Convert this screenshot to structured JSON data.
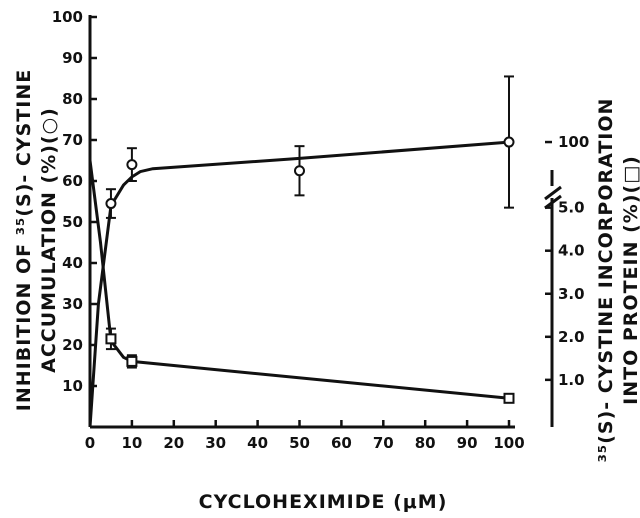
{
  "chart_data": {
    "type": "line",
    "xlabel": "CYCLOHEXIMIDE (μM)",
    "ylabel_left": [
      "INHIBITION OF ³⁵(S)- CYSTINE",
      "ACCUMULATION (%)(○)"
    ],
    "ylabel_right": [
      "³⁵(S)- CYSTINE INCORPORATION",
      "INTO PROTEIN (%)(□)"
    ],
    "xlim": [
      0,
      110
    ],
    "xticks": [
      "0",
      "10",
      "20",
      "30",
      "40",
      "50",
      "60",
      "70",
      "80",
      "90",
      "100"
    ],
    "ylim_left": [
      0,
      100
    ],
    "yticks_left": [
      "10",
      "20",
      "30",
      "40",
      "50",
      "60",
      "70",
      "80",
      "90",
      "100"
    ],
    "right_axis_break": true,
    "yticks_right": [
      {
        "label": "1.0",
        "value": 1.0,
        "left_equiv": 11.5
      },
      {
        "label": "2.0",
        "value": 2.0,
        "left_equiv": 22.0
      },
      {
        "label": "3.0",
        "value": 3.0,
        "left_equiv": 32.5
      },
      {
        "label": "4.0",
        "value": 4.0,
        "left_equiv": 43.0
      },
      {
        "label": "5.0",
        "value": 5.0,
        "left_equiv": 53.5
      },
      {
        "label": "100",
        "value": 100,
        "left_equiv": 69.5
      }
    ],
    "series": [
      {
        "marker": "circle",
        "axis": "left",
        "x": [
          5,
          10,
          50,
          100
        ],
        "y": [
          54.5,
          64,
          62.5,
          69.5
        ],
        "err": [
          3.5,
          4,
          6,
          16
        ],
        "curve": [
          [
            0,
            0
          ],
          [
            2,
            30
          ],
          [
            5,
            54
          ],
          [
            8,
            59
          ],
          [
            10,
            61
          ],
          [
            12,
            62.3
          ],
          [
            15,
            63
          ],
          [
            50,
            65.5
          ],
          [
            100,
            69.5
          ]
        ]
      },
      {
        "marker": "square",
        "axis": "right",
        "x": [
          5,
          10,
          100
        ],
        "y": [
          21.5,
          16,
          7
        ],
        "err": [
          2.5,
          1.5,
          1
        ],
        "curve": [
          [
            0,
            65
          ],
          [
            2.5,
            45
          ],
          [
            5,
            21
          ],
          [
            8,
            17
          ],
          [
            10,
            16
          ],
          [
            100,
            7
          ]
        ]
      }
    ]
  }
}
